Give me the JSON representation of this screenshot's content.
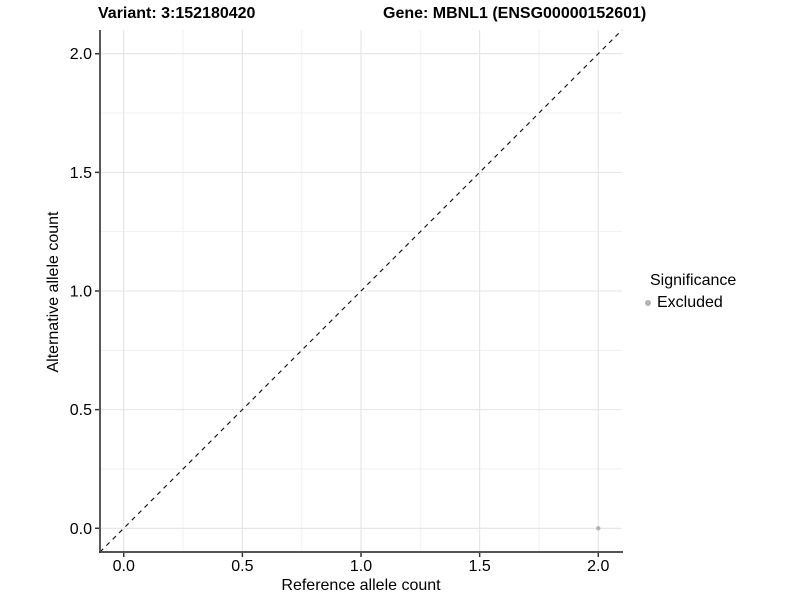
{
  "header": {
    "variant_title": "Variant: 3:152180420",
    "gene_title": "Gene: MBNL1 (ENSG00000152601)"
  },
  "chart_data": {
    "type": "scatter",
    "title_left": "Variant: 3:152180420",
    "title_right": "Gene: MBNL1 (ENSG00000152601)",
    "xlabel": "Reference allele count",
    "ylabel": "Alternative allele count",
    "xlim": [
      -0.1,
      2.1
    ],
    "ylim": [
      -0.1,
      2.1
    ],
    "x_major_ticks": [
      0.0,
      0.5,
      1.0,
      1.5,
      2.0
    ],
    "y_major_ticks": [
      0.0,
      0.5,
      1.0,
      1.5,
      2.0
    ],
    "x_minor_ticks": [
      0.25,
      0.75,
      1.25,
      1.75
    ],
    "y_minor_ticks": [
      0.25,
      0.75,
      1.25,
      1.75
    ],
    "grid": true,
    "reference_line": {
      "type": "identity-diagonal",
      "from": [
        -0.1,
        -0.1
      ],
      "to": [
        2.1,
        2.1
      ],
      "style": "dashed",
      "color": "#1a1a1a"
    },
    "series": [
      {
        "name": "Excluded",
        "color": "#b3b3b3",
        "points": [
          {
            "x": 2.0,
            "y": 0.0
          }
        ]
      }
    ],
    "legend": {
      "title": "Significance",
      "position": "right",
      "items": [
        {
          "label": "Excluded",
          "color": "#b3b3b3"
        }
      ]
    },
    "colors": {
      "background": "#ffffff",
      "grid_major": "#e4e4e4",
      "grid_minor": "#f1f1f1",
      "axis_line": "#3c3c3c",
      "tick": "#333333",
      "text": "#000000"
    }
  }
}
